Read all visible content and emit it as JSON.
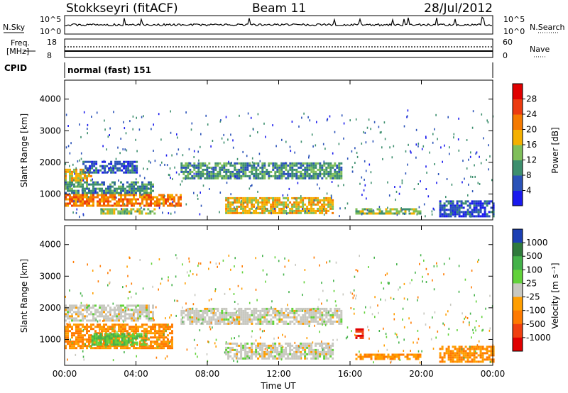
{
  "header": {
    "title": "Stokkseyri (fitACF)",
    "beam": "Beam 11",
    "date": "28/Jul/2012",
    "cpid_mode": "normal (fast) 151"
  },
  "panel_labels": {
    "nsky": "N.Sky",
    "nsearch": "N.Search",
    "freq": "Freq.",
    "freq_unit": "[MHz]",
    "nave": "Nave",
    "cpid": "CPID"
  },
  "noise_axis": {
    "left_ticks": [
      {
        "base": "10",
        "exp": "^5"
      },
      {
        "base": "10",
        "exp": "^0"
      }
    ],
    "right_ticks": [
      {
        "base": "10",
        "exp": "^5"
      },
      {
        "base": "10",
        "exp": "^0"
      }
    ]
  },
  "freq_axis": {
    "left_ticks": [
      "18",
      "8"
    ],
    "right_ticks": [
      "60",
      "0"
    ]
  },
  "chart_data": [
    {
      "type": "heatmap",
      "name": "power",
      "ylabel": "Slant Range [km]",
      "ylim": [
        180,
        4600
      ],
      "yticks": [
        1000,
        2000,
        3000,
        4000
      ],
      "xlim": [
        0,
        24
      ],
      "xticks": [
        "00:00",
        "04:00",
        "08:00",
        "12:00",
        "16:00",
        "20:00",
        "00:00"
      ],
      "colorbar": {
        "label": "Power [dB]",
        "ticks": [
          "4",
          "8",
          "12",
          "16",
          "20",
          "24",
          "28"
        ],
        "colors": [
          "#1a1aee",
          "#2a52b8",
          "#3d8f6e",
          "#7fbf5a",
          "#f5b000",
          "#f57a00",
          "#ec3b10",
          "#e00000"
        ]
      },
      "regions": [
        {
          "t0": 0.0,
          "t1": 6.5,
          "r0": 600,
          "r1": 1000,
          "value": 24
        },
        {
          "t0": 0.0,
          "t1": 5.0,
          "r0": 1000,
          "r1": 1400,
          "value": 12
        },
        {
          "t0": 0.0,
          "t1": 1.5,
          "r0": 1450,
          "r1": 1800,
          "value": 20
        },
        {
          "t0": 1.0,
          "t1": 4.0,
          "r0": 1700,
          "r1": 2050,
          "value": 8
        },
        {
          "t0": 2.0,
          "t1": 5.0,
          "r0": 350,
          "r1": 550,
          "value": 16
        },
        {
          "t0": 6.5,
          "t1": 15.5,
          "r0": 1500,
          "r1": 2000,
          "value": 12
        },
        {
          "t0": 9.0,
          "t1": 15.0,
          "r0": 400,
          "r1": 900,
          "value": 20
        },
        {
          "t0": 16.3,
          "t1": 20.0,
          "r0": 350,
          "r1": 550,
          "value": 16
        },
        {
          "t0": 21.0,
          "t1": 24.0,
          "r0": 300,
          "r1": 800,
          "value": 8
        }
      ]
    },
    {
      "type": "heatmap",
      "name": "velocity",
      "ylabel": "Slant Range [km]",
      "ylim": [
        180,
        4600
      ],
      "yticks": [
        1000,
        2000,
        3000,
        4000
      ],
      "xlim": [
        0,
        24
      ],
      "xlabel": "Time UT",
      "xticks": [
        "00:00",
        "04:00",
        "08:00",
        "12:00",
        "16:00",
        "20:00",
        "00:00"
      ],
      "colorbar": {
        "label": "Velocity [m s⁻¹]",
        "ticks": [
          "1000",
          "500",
          "100",
          "25",
          "-25",
          "-100",
          "-500",
          "-1000"
        ],
        "colors": [
          "#1c3fb3",
          "#2f7a3c",
          "#44b24a",
          "#62d23a",
          "#c8c8c0",
          "#ff9e00",
          "#ff7a00",
          "#f04010",
          "#e00000"
        ]
      },
      "regions": [
        {
          "t0": 0.0,
          "t1": 6.0,
          "r0": 700,
          "r1": 1500,
          "value": -100
        },
        {
          "t0": 1.5,
          "t1": 4.5,
          "r0": 800,
          "r1": 1200,
          "value": 100
        },
        {
          "t0": 0.0,
          "t1": 5.0,
          "r0": 1600,
          "r1": 2100,
          "value": 0
        },
        {
          "t0": 6.5,
          "t1": 15.5,
          "r0": 1500,
          "r1": 2000,
          "value": 0
        },
        {
          "t0": 9.0,
          "t1": 15.0,
          "r0": 400,
          "r1": 900,
          "value": 0
        },
        {
          "t0": 16.3,
          "t1": 16.7,
          "r0": 1050,
          "r1": 1350,
          "value": -1000
        },
        {
          "t0": 16.3,
          "t1": 20.0,
          "r0": 350,
          "r1": 550,
          "value": -100
        },
        {
          "t0": 21.0,
          "t1": 24.0,
          "r0": 300,
          "r1": 800,
          "value": -100
        }
      ]
    }
  ]
}
